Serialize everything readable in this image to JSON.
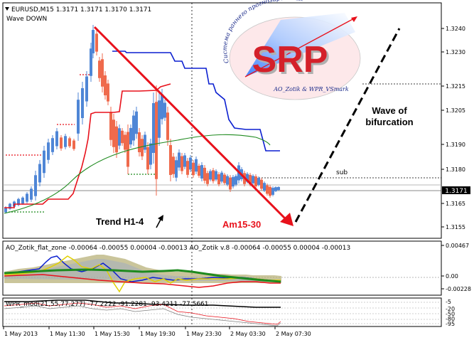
{
  "header": {
    "symbol_line": "EURUSD,M15  1.3171 1.3171 1.3170 1.3171",
    "indicator_name": "Wave DOWN"
  },
  "price_axis": {
    "ticks": [
      "1.3240",
      "1.3230",
      "1.3215",
      "1.3205",
      "1.3190",
      "1.3180",
      "1.3165",
      "1.3155"
    ],
    "current_price": "1.3171"
  },
  "annotations": {
    "wave_label_line1": "Wave of",
    "wave_label_line2": "bifurcation",
    "sub_label": "sub",
    "trend_label": "Trend H1-4",
    "am_label": "Am15-30"
  },
  "logo": {
    "letters": "SRP",
    "arc_text": "Система раннего прогнозирования",
    "bottom_text": "AO_Zotik & WPR_VSmark"
  },
  "ao_panel": {
    "legend": "AO_Zotik_flat_zone -0.00064 -0.00055 0.00004 -0.00013  AO_Zotik v.8 -0.00064 -0.00055 0.00004 -0.00013",
    "ticks": [
      "0.00467",
      "0.00",
      "-0.00228"
    ]
  },
  "wpr_panel": {
    "legend": "WPR_mod(21,55,77,277) -77.2222 -91.2281 -93.4211 -77.5661",
    "ticks": [
      "-5",
      "-20",
      "-50",
      "-80",
      "-95"
    ]
  },
  "time_axis": {
    "labels": [
      "1 May 2013",
      "1 May 11:30",
      "1 May 15:30",
      "1 May 19:30",
      "1 May 23:30",
      "2 May 03:30",
      "2 May 07:30"
    ]
  },
  "colors": {
    "bull": "#4f86d6",
    "bear": "#ef6a4c",
    "red_line": "#e8111b",
    "blue_line": "#0b1fd0",
    "green_line": "#1e8a1e",
    "grid": "#c8c8c8"
  }
}
